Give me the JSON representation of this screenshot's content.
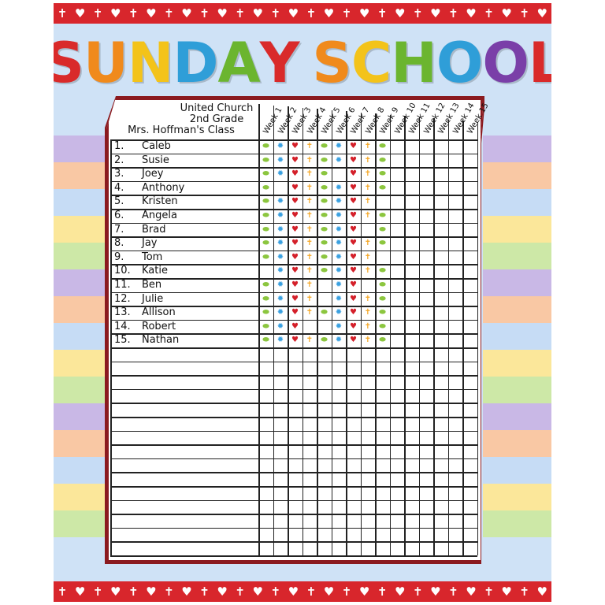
{
  "title": {
    "letters": [
      {
        "ch": "S",
        "color": "#d92a2a"
      },
      {
        "ch": "U",
        "color": "#f08a1c"
      },
      {
        "ch": "N",
        "color": "#f3c31a"
      },
      {
        "ch": "D",
        "color": "#2f9ed8"
      },
      {
        "ch": "A",
        "color": "#6bb52f"
      },
      {
        "ch": "Y",
        "color": "#d92a2a"
      },
      {
        "ch": " ",
        "color": "#000"
      },
      {
        "ch": "S",
        "color": "#f08a1c"
      },
      {
        "ch": "C",
        "color": "#f3c31a"
      },
      {
        "ch": "H",
        "color": "#6bb52f"
      },
      {
        "ch": "O",
        "color": "#2f9ed8"
      },
      {
        "ch": "O",
        "color": "#7a3fa8"
      },
      {
        "ch": "L",
        "color": "#d92a2a"
      }
    ]
  },
  "border_icons": [
    "cross",
    "heart"
  ],
  "header": {
    "line1": "United Church",
    "line2": "2nd Grade",
    "line3": "Mrs. Hoffman's Class"
  },
  "weeks": [
    "Week 1",
    "Week 2",
    "Week 3",
    "Week 4",
    "Week 5",
    "Week 6",
    "Week 7",
    "Week 8",
    "Week 9",
    "Week 10",
    "Week 11",
    "Week 12",
    "Week 13",
    "Week 14",
    "Week 15"
  ],
  "sticker_types": {
    "fish": {
      "glyph": "⬬",
      "color": "#8cc63f"
    },
    "flower": {
      "glyph": "✹",
      "color": "#3aa0e0"
    },
    "heart": {
      "glyph": "♥",
      "color": "#d4202a"
    },
    "cross": {
      "glyph": "✝",
      "color": "#f5a623"
    }
  },
  "week_sticker_pattern": [
    "fish",
    "flower",
    "heart",
    "cross",
    "fish",
    "flower",
    "heart",
    "cross",
    "fish"
  ],
  "students": [
    {
      "num": "1.",
      "name": "Caleb",
      "attended": [
        1,
        1,
        1,
        1,
        1,
        1,
        1,
        1,
        1
      ]
    },
    {
      "num": "2.",
      "name": "Susie",
      "attended": [
        1,
        1,
        1,
        1,
        1,
        1,
        1,
        1,
        1
      ]
    },
    {
      "num": "3.",
      "name": "Joey",
      "attended": [
        1,
        1,
        1,
        1,
        1,
        0,
        1,
        1,
        1
      ]
    },
    {
      "num": "4.",
      "name": "Anthony",
      "attended": [
        1,
        0,
        1,
        1,
        1,
        1,
        1,
        1,
        1
      ]
    },
    {
      "num": "5.",
      "name": "Kristen",
      "attended": [
        1,
        1,
        1,
        1,
        1,
        1,
        1,
        1,
        0
      ]
    },
    {
      "num": "6.",
      "name": "Angela",
      "attended": [
        1,
        1,
        1,
        1,
        1,
        1,
        1,
        1,
        1
      ]
    },
    {
      "num": "7.",
      "name": "Brad",
      "attended": [
        1,
        1,
        1,
        1,
        1,
        1,
        1,
        0,
        1
      ]
    },
    {
      "num": "8.",
      "name": "Jay",
      "attended": [
        1,
        1,
        1,
        1,
        1,
        1,
        1,
        1,
        1
      ]
    },
    {
      "num": "9.",
      "name": "Tom",
      "attended": [
        1,
        1,
        1,
        1,
        1,
        1,
        1,
        1,
        0
      ]
    },
    {
      "num": "10.",
      "name": "Katie",
      "attended": [
        0,
        1,
        1,
        1,
        1,
        1,
        1,
        1,
        1
      ]
    },
    {
      "num": "11.",
      "name": "Ben",
      "attended": [
        1,
        1,
        1,
        1,
        0,
        1,
        1,
        0,
        1
      ]
    },
    {
      "num": "12.",
      "name": "Julie",
      "attended": [
        1,
        1,
        1,
        1,
        0,
        1,
        1,
        1,
        1
      ]
    },
    {
      "num": "13.",
      "name": "Allison",
      "attended": [
        1,
        1,
        1,
        1,
        1,
        1,
        1,
        1,
        1
      ]
    },
    {
      "num": "14.",
      "name": "Robert",
      "attended": [
        1,
        1,
        1,
        0,
        0,
        1,
        1,
        1,
        1
      ]
    },
    {
      "num": "15.",
      "name": "Nathan",
      "attended": [
        1,
        1,
        1,
        1,
        1,
        1,
        1,
        1,
        1
      ]
    }
  ]
}
